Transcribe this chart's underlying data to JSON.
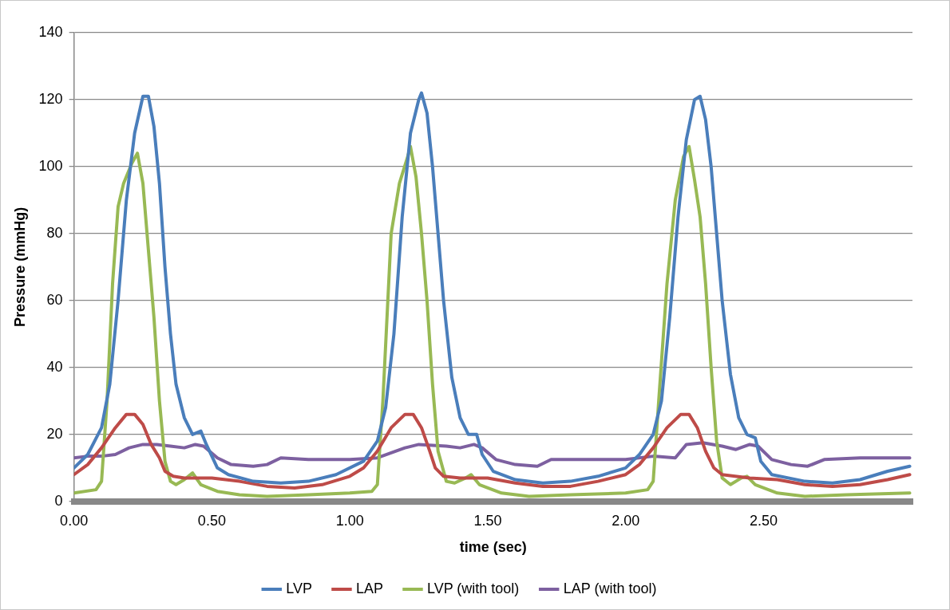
{
  "chart_data": {
    "type": "line",
    "xlabel": "time (sec)",
    "ylabel": "Pressure (mmHg)",
    "xlim": [
      0,
      3.04
    ],
    "xticks": [
      {
        "value": 0,
        "label": "0.00"
      },
      {
        "value": 0.5,
        "label": "0.50"
      },
      {
        "value": 1,
        "label": "1.00"
      },
      {
        "value": 1.5,
        "label": "1.50"
      },
      {
        "value": 2,
        "label": "2.00"
      },
      {
        "value": 2.5,
        "label": "2.50"
      }
    ],
    "ylim": [
      0,
      140
    ],
    "yticks": [
      0,
      20,
      40,
      60,
      80,
      100,
      120,
      140
    ],
    "grid": "y",
    "legend": "bottom",
    "marker": "none",
    "line_style": "solid",
    "series": [
      {
        "name": "LVP",
        "color": "#4a7ebb",
        "x": [
          0,
          0.05,
          0.1,
          0.13,
          0.16,
          0.19,
          0.22,
          0.25,
          0.27,
          0.29,
          0.31,
          0.33,
          0.35,
          0.37,
          0.4,
          0.43,
          0.46,
          0.48,
          0.52,
          0.56,
          0.65,
          0.75,
          0.85,
          0.95,
          1.05,
          1.1,
          1.13,
          1.16,
          1.19,
          1.22,
          1.25,
          1.26,
          1.28,
          1.3,
          1.32,
          1.34,
          1.37,
          1.4,
          1.43,
          1.46,
          1.48,
          1.52,
          1.6,
          1.7,
          1.8,
          1.9,
          2,
          2.05,
          2.1,
          2.13,
          2.16,
          2.19,
          2.22,
          2.25,
          2.27,
          2.29,
          2.31,
          2.33,
          2.35,
          2.38,
          2.41,
          2.44,
          2.47,
          2.49,
          2.53,
          2.65,
          2.75,
          2.85,
          2.95,
          3.03
        ],
        "values": [
          10,
          14,
          22,
          35,
          60,
          90,
          110,
          121,
          121,
          112,
          95,
          70,
          50,
          35,
          25,
          20,
          21,
          17,
          10,
          8,
          6,
          5.5,
          6,
          8,
          12,
          18,
          28,
          50,
          85,
          110,
          120,
          122,
          116,
          100,
          80,
          60,
          37,
          25,
          20,
          20,
          14,
          9,
          6.5,
          5.5,
          6,
          7.5,
          10,
          14,
          20,
          30,
          55,
          85,
          108,
          120,
          121,
          114,
          100,
          80,
          60,
          38,
          25,
          20,
          19,
          12,
          8,
          6,
          5.5,
          6.5,
          9,
          10.5
        ]
      },
      {
        "name": "LAP",
        "color": "#be4b48",
        "x": [
          0,
          0.05,
          0.1,
          0.15,
          0.19,
          0.22,
          0.25,
          0.28,
          0.31,
          0.33,
          0.36,
          0.4,
          0.5,
          0.6,
          0.7,
          0.8,
          0.9,
          1,
          1.05,
          1.1,
          1.15,
          1.2,
          1.23,
          1.26,
          1.29,
          1.31,
          1.34,
          1.4,
          1.5,
          1.6,
          1.7,
          1.8,
          1.9,
          2,
          2.05,
          2.1,
          2.15,
          2.2,
          2.23,
          2.26,
          2.29,
          2.32,
          2.35,
          2.45,
          2.55,
          2.65,
          2.75,
          2.85,
          2.95,
          3.03
        ],
        "values": [
          8,
          11,
          16,
          22,
          26,
          26,
          23,
          17,
          13,
          9,
          7.5,
          7,
          7,
          6,
          4.5,
          4,
          5,
          7.5,
          10,
          15,
          22,
          26,
          26,
          22,
          15,
          10,
          7.5,
          7,
          7,
          5.5,
          4.5,
          4.5,
          6,
          8,
          11,
          16,
          22,
          26,
          26,
          22,
          15,
          10,
          8,
          7,
          6.5,
          5,
          4.5,
          5,
          6.5,
          8
        ]
      },
      {
        "name": "LVP (with tool)",
        "color": "#98b954",
        "x": [
          0,
          0.08,
          0.1,
          0.12,
          0.14,
          0.16,
          0.18,
          0.21,
          0.23,
          0.25,
          0.27,
          0.29,
          0.31,
          0.33,
          0.35,
          0.37,
          0.4,
          0.43,
          0.46,
          0.52,
          0.6,
          0.7,
          0.85,
          1,
          1.08,
          1.1,
          1.12,
          1.15,
          1.18,
          1.21,
          1.22,
          1.24,
          1.26,
          1.28,
          1.3,
          1.32,
          1.35,
          1.38,
          1.42,
          1.44,
          1.47,
          1.55,
          1.65,
          1.8,
          2,
          2.08,
          2.1,
          2.12,
          2.15,
          2.18,
          2.21,
          2.23,
          2.25,
          2.27,
          2.29,
          2.31,
          2.33,
          2.35,
          2.38,
          2.42,
          2.44,
          2.47,
          2.55,
          2.65,
          2.8,
          3.03
        ],
        "values": [
          2.5,
          3.5,
          6,
          30,
          65,
          88,
          95,
          101,
          104,
          95,
          75,
          55,
          30,
          12,
          6,
          5,
          6.5,
          8.5,
          5,
          3,
          2,
          1.5,
          2,
          2.5,
          3,
          5,
          30,
          80,
          95,
          103,
          106,
          97,
          80,
          60,
          35,
          15,
          6,
          5.5,
          7,
          8,
          5,
          2.5,
          1.5,
          2,
          2.5,
          3.5,
          6,
          30,
          65,
          90,
          103,
          106,
          96,
          85,
          65,
          40,
          18,
          7,
          5,
          7,
          7.5,
          5,
          2.5,
          1.5,
          2,
          2.5
        ]
      },
      {
        "name": "LAP (with tool)",
        "color": "#7d60a0",
        "x": [
          0,
          0.05,
          0.1,
          0.15,
          0.2,
          0.25,
          0.3,
          0.35,
          0.4,
          0.44,
          0.47,
          0.52,
          0.57,
          0.65,
          0.7,
          0.75,
          0.85,
          1,
          1.1,
          1.2,
          1.25,
          1.35,
          1.4,
          1.45,
          1.48,
          1.53,
          1.6,
          1.68,
          1.73,
          1.85,
          2,
          2.1,
          2.18,
          2.22,
          2.28,
          2.35,
          2.4,
          2.45,
          2.48,
          2.53,
          2.6,
          2.66,
          2.72,
          2.85,
          3.03
        ],
        "values": [
          13,
          13.5,
          13.5,
          14,
          16,
          17,
          17,
          16.5,
          16,
          17,
          16.5,
          13,
          11,
          10.5,
          11,
          13,
          12.5,
          12.5,
          13,
          16,
          17,
          16.5,
          16,
          17,
          16,
          12.5,
          11,
          10.5,
          12.5,
          12.5,
          12.5,
          13.5,
          13,
          17,
          17.5,
          16.5,
          15.5,
          17,
          16.5,
          12.5,
          11,
          10.5,
          12.5,
          13,
          13
        ]
      }
    ]
  }
}
